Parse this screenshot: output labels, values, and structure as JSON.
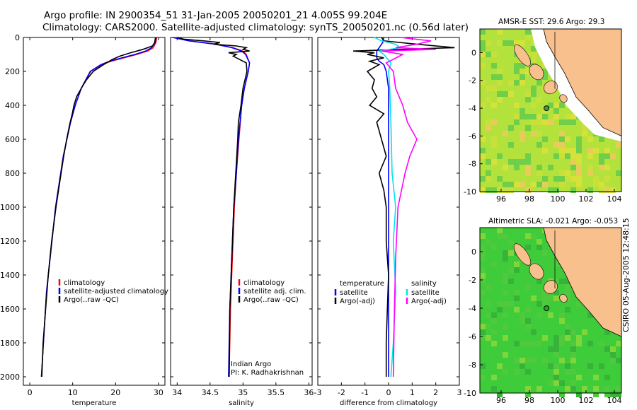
{
  "title_line1": "Argo profile: IN 2900354_51 31-Jan-2005 20050201_21 4.005S 99.204E",
  "title_line2": "Climatology: CARS2000. Satellite-adjusted climatology: synTS_20050201.nc (0.56d later)",
  "credit": "CSIRO 05-Aug-2005 12:48:15",
  "colors": {
    "climatology": "#ff0000",
    "satellite": "#0000ff",
    "argo": "#000000",
    "salinity_sat": "#00e5ee",
    "salinity_argo": "#ff00ff",
    "land": "#f8c08c",
    "sst_ocean": "#b4e23c",
    "sla_ocean": "#3fcc3a"
  },
  "chart_data": [
    {
      "type": "line",
      "id": "temperature",
      "xlabel": "temperature",
      "ylabel": "",
      "xlim": [
        -1.5,
        31.5
      ],
      "ylim": [
        2050,
        0
      ],
      "xticks": [
        0,
        10,
        20,
        30
      ],
      "yticks": [
        0,
        200,
        400,
        600,
        800,
        1000,
        1200,
        1400,
        1600,
        1800,
        2000
      ],
      "legend": [
        "climatology",
        "satellite-adjusted climatology",
        "Argo(..raw -QC)"
      ],
      "series": [
        {
          "name": "climatology",
          "depth": [
            0,
            30,
            60,
            80,
            100,
            120,
            140,
            160,
            200,
            300,
            400,
            500,
            700,
            1000,
            1500,
            2000
          ],
          "values": [
            29.6,
            29.4,
            28.8,
            27.5,
            25.0,
            22.0,
            19.0,
            16.8,
            14.2,
            12.0,
            10.6,
            9.5,
            7.8,
            6.0,
            3.9,
            2.7
          ]
        },
        {
          "name": "satellite-adjusted climatology",
          "depth": [
            0,
            30,
            60,
            80,
            100,
            120,
            140,
            160,
            200,
            300,
            400,
            500,
            700,
            1000,
            1500,
            2000
          ],
          "values": [
            29.4,
            29.2,
            28.4,
            27.0,
            24.5,
            21.5,
            18.6,
            16.6,
            14.1,
            12.0,
            10.6,
            9.5,
            7.8,
            6.0,
            3.9,
            2.7
          ]
        },
        {
          "name": "Argo(..raw -QC)",
          "depth": [
            0,
            30,
            50,
            70,
            90,
            110,
            130,
            160,
            200,
            250,
            300,
            350,
            400,
            450,
            500,
            600,
            700,
            800,
            900,
            1000,
            1200,
            1400,
            1600,
            1800,
            2000
          ],
          "values": [
            29.3,
            29.1,
            28.6,
            26.4,
            23.5,
            21.0,
            19.2,
            17.2,
            14.8,
            13.2,
            12.0,
            10.9,
            10.3,
            9.9,
            9.4,
            8.6,
            7.9,
            7.3,
            6.7,
            6.1,
            5.1,
            4.3,
            3.7,
            3.1,
            2.8
          ]
        }
      ]
    },
    {
      "type": "line",
      "id": "salinity",
      "xlabel": "salinity",
      "ylabel": "",
      "xlim": [
        33.9,
        36.05
      ],
      "ylim": [
        2050,
        0
      ],
      "xticks": [
        34,
        34.5,
        35,
        35.5,
        36
      ],
      "legend": [
        "climatology",
        "satellite adj. clim.",
        "Argo(..raw -QC)"
      ],
      "annotation": [
        "Indian Argo",
        "PI: K. Radhakrishnan"
      ],
      "series": [
        {
          "name": "climatology",
          "depth": [
            0,
            20,
            40,
            60,
            80,
            100,
            150,
            200,
            300,
            400,
            600,
            800,
            1000,
            1300,
            1600,
            2000
          ],
          "values": [
            33.95,
            34.2,
            34.6,
            34.85,
            35.0,
            35.05,
            35.1,
            35.08,
            35.02,
            34.98,
            34.94,
            34.9,
            34.87,
            34.84,
            34.81,
            34.79
          ]
        },
        {
          "name": "satellite adj. clim.",
          "depth": [
            0,
            20,
            40,
            60,
            80,
            100,
            150,
            200,
            300,
            400,
            600,
            800,
            1000,
            1300,
            1600,
            2000
          ],
          "values": [
            33.93,
            34.18,
            34.58,
            34.83,
            34.98,
            35.04,
            35.1,
            35.08,
            35.02,
            34.98,
            34.93,
            34.9,
            34.86,
            34.83,
            34.8,
            34.78
          ]
        },
        {
          "name": "Argo(..raw -QC)",
          "depth": [
            0,
            10,
            20,
            30,
            40,
            50,
            60,
            70,
            80,
            90,
            100,
            110,
            130,
            150,
            200,
            250,
            300,
            400,
            500,
            600,
            800,
            1000,
            1300,
            1600,
            2000
          ],
          "values": [
            34.0,
            34.1,
            34.4,
            34.65,
            34.55,
            34.9,
            35.05,
            35.0,
            35.1,
            34.78,
            34.9,
            34.85,
            34.95,
            35.05,
            35.06,
            35.03,
            35.0,
            34.97,
            34.93,
            34.92,
            34.89,
            34.86,
            34.83,
            34.8,
            34.79
          ]
        }
      ]
    },
    {
      "type": "line",
      "id": "difference",
      "xlabel": "difference from climatology",
      "ylabel": "",
      "xlim": [
        -3,
        3
      ],
      "ylim": [
        2050,
        0
      ],
      "xticks": [
        -3,
        -2,
        -1,
        0,
        1,
        2,
        3
      ],
      "legend_left_title": "temperature",
      "legend_right_title": "salinity",
      "legend_left": [
        "satellite",
        "Argo(-adj)"
      ],
      "legend_right": [
        "satellite",
        "Argo(-adj)"
      ],
      "series": [
        {
          "name": "temperature satellite",
          "depth": [
            0,
            30,
            60,
            80,
            100,
            120,
            140,
            160,
            200,
            300,
            500,
            800,
            1200,
            1600,
            2000
          ],
          "values": [
            -0.2,
            -0.25,
            -0.4,
            -0.5,
            -0.5,
            -0.5,
            -0.4,
            -0.2,
            -0.1,
            0.0,
            0.0,
            0.0,
            0.0,
            0.0,
            0.0
          ]
        },
        {
          "name": "temperature Argo(-adj)",
          "depth": [
            0,
            20,
            40,
            60,
            70,
            80,
            90,
            100,
            120,
            140,
            160,
            200,
            250,
            300,
            350,
            400,
            450,
            500,
            550,
            600,
            700,
            800,
            900,
            1000,
            1200,
            1400,
            1600,
            1800,
            2000
          ],
          "values": [
            -0.3,
            -0.2,
            1.2,
            2.8,
            0.6,
            -1.5,
            -0.6,
            -0.9,
            -0.2,
            -0.8,
            -0.4,
            -0.9,
            -0.6,
            -0.7,
            -0.5,
            -0.8,
            -0.2,
            -0.5,
            -0.4,
            -0.3,
            -0.1,
            -0.4,
            -0.2,
            -0.1,
            -0.1,
            0.0,
            -0.05,
            -0.1,
            -0.1
          ]
        },
        {
          "name": "salinity satellite",
          "depth": [
            0,
            20,
            40,
            60,
            80,
            100,
            150,
            200,
            300,
            500,
            800,
            1000,
            1200,
            1500,
            1800,
            2000
          ],
          "values": [
            -0.6,
            -0.3,
            0.3,
            0.5,
            -0.4,
            -0.2,
            0.1,
            0.0,
            0.05,
            0.1,
            0.15,
            0.3,
            0.2,
            0.3,
            0.2,
            0.1
          ]
        },
        {
          "name": "salinity Argo(-adj)",
          "depth": [
            0,
            20,
            40,
            60,
            70,
            80,
            100,
            150,
            200,
            300,
            400,
            500,
            600,
            700,
            800,
            1000,
            1300,
            1600,
            2000
          ],
          "values": [
            0.5,
            1.8,
            1.2,
            0.3,
            2.0,
            -0.3,
            0.6,
            -0.1,
            0.2,
            0.3,
            0.6,
            0.8,
            1.2,
            0.9,
            0.7,
            0.4,
            0.3,
            0.25,
            0.2
          ]
        }
      ]
    },
    {
      "type": "heatmap",
      "id": "sst-map",
      "title": "AMSR-E SST: 29.6 Argo: 29.3",
      "xlim": [
        94.5,
        104.5
      ],
      "ylim": [
        -10,
        1.7
      ],
      "xticks": [
        96,
        98,
        100,
        102,
        104
      ],
      "yticks": [
        0,
        -2,
        -4,
        -6,
        -8,
        -10
      ],
      "argo_position": {
        "lon": 99.204,
        "lat": -4.005
      }
    },
    {
      "type": "heatmap",
      "id": "sla-map",
      "title": "Altimetric SLA: -0.021 Argo: -0.053",
      "xlim": [
        94.5,
        104.5
      ],
      "ylim": [
        -10,
        1.7
      ],
      "xticks": [
        96,
        98,
        100,
        102,
        104
      ],
      "yticks": [
        0,
        -2,
        -4,
        -6,
        -8,
        -10
      ],
      "argo_position": {
        "lon": 99.204,
        "lat": -4.005
      }
    }
  ]
}
